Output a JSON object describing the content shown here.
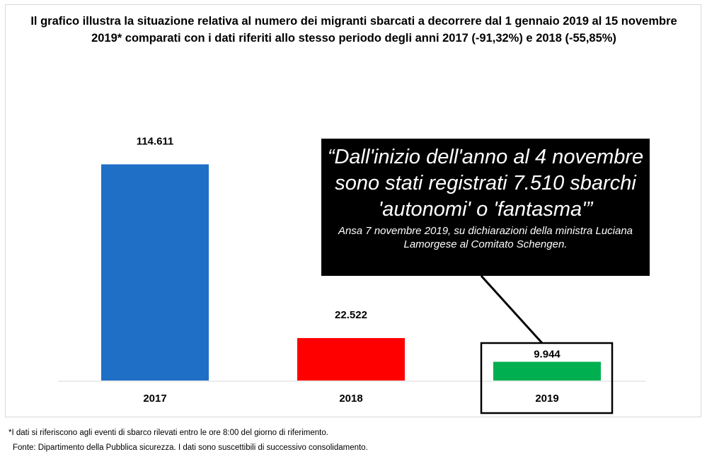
{
  "title": "Il grafico illustra la situazione relativa al numero dei migranti sbarcati a decorrere dal 1 gennaio 2019 al 15 novembre 2019* comparati con i dati riferiti allo stesso periodo degli anni 2017 (-91,32%) e 2018 (-55,85%)",
  "chart_data": {
    "type": "bar",
    "title": "Il grafico illustra la situazione relativa al numero dei migranti sbarcati a decorrere dal 1 gennaio 2019 al 15 novembre 2019* comparati con i dati riferiti allo stesso periodo degli anni 2017 (-91,32%) e 2018 (-55,85%)",
    "categories": [
      "2017",
      "2018",
      "2019"
    ],
    "values": [
      114611,
      22522,
      9944
    ],
    "value_labels": [
      "114.611",
      "22.522",
      "9.944"
    ],
    "colors": [
      "#1f6fc6",
      "#ff0000",
      "#00b050"
    ],
    "ylim": [
      0,
      120000
    ],
    "grid": false,
    "xlabel": "",
    "ylabel": "",
    "highlight_category": "2019"
  },
  "quote": {
    "text": "“Dall'inizio dell'anno al 4 novembre sono stati registrati 7.510 sbarchi 'autonomi' o 'fantasma'”",
    "source": "Ansa 7 novembre 2019, su dichiarazioni della ministra Luciana Lamorgese al Comitato Schengen."
  },
  "footnote": "*I dati si riferiscono agli eventi di sbarco rilevati entro le ore 8:00 del giorno di riferimento.",
  "source_note": "Fonte: Dipartimento della Pubblica sicurezza. I dati sono suscettibili di successivo consolidamento."
}
